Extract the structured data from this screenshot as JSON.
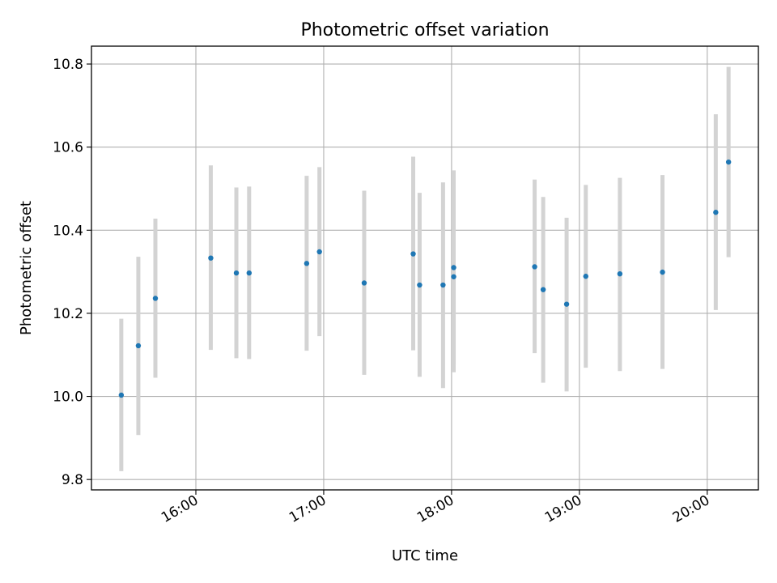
{
  "chart_data": {
    "type": "scatter",
    "title": "Photometric offset variation",
    "xlabel": "UTC time",
    "ylabel": "Photometric offset",
    "x_tick_labels": [
      "16:00",
      "17:00",
      "18:00",
      "19:00",
      "20:00"
    ],
    "y_tick_labels": [
      "9.8",
      "10.0",
      "10.2",
      "10.4",
      "10.6",
      "10.8"
    ],
    "y_ticks": [
      9.8,
      10.0,
      10.2,
      10.4,
      10.6,
      10.8
    ],
    "xlim": [
      "15:11",
      "20:24"
    ],
    "ylim": [
      9.775,
      10.843
    ],
    "grid": true,
    "point_color": "#1f77b4",
    "errorbar_color": "#d3d3d3",
    "series": [
      {
        "points": [
          {
            "time": "15:25",
            "y": 10.003,
            "ylow": 9.82,
            "yhigh": 10.187
          },
          {
            "time": "15:33",
            "y": 10.122,
            "ylow": 9.907,
            "yhigh": 10.336
          },
          {
            "time": "15:41",
            "y": 10.236,
            "ylow": 10.045,
            "yhigh": 10.428
          },
          {
            "time": "16:07",
            "y": 10.333,
            "ylow": 10.112,
            "yhigh": 10.556
          },
          {
            "time": "16:19",
            "y": 10.297,
            "ylow": 10.092,
            "yhigh": 10.503
          },
          {
            "time": "16:25",
            "y": 10.297,
            "ylow": 10.09,
            "yhigh": 10.505
          },
          {
            "time": "16:52",
            "y": 10.32,
            "ylow": 10.11,
            "yhigh": 10.531
          },
          {
            "time": "16:58",
            "y": 10.348,
            "ylow": 10.145,
            "yhigh": 10.552
          },
          {
            "time": "17:19",
            "y": 10.273,
            "ylow": 10.052,
            "yhigh": 10.495
          },
          {
            "time": "17:42",
            "y": 10.343,
            "ylow": 10.111,
            "yhigh": 10.577
          },
          {
            "time": "17:45",
            "y": 10.268,
            "ylow": 10.047,
            "yhigh": 10.49
          },
          {
            "time": "17:56",
            "y": 10.268,
            "ylow": 10.02,
            "yhigh": 10.515
          },
          {
            "time": "18:01",
            "y": 10.31,
            "ylow": 10.058,
            "yhigh": 10.544
          },
          {
            "time": "18:01",
            "y": 10.288,
            "ylow": 10.076,
            "yhigh": 10.3
          },
          {
            "time": "18:39",
            "y": 10.312,
            "ylow": 10.104,
            "yhigh": 10.522
          },
          {
            "time": "18:43",
            "y": 10.257,
            "ylow": 10.033,
            "yhigh": 10.48
          },
          {
            "time": "18:54",
            "y": 10.222,
            "ylow": 10.012,
            "yhigh": 10.43
          },
          {
            "time": "19:03",
            "y": 10.289,
            "ylow": 10.069,
            "yhigh": 10.509
          },
          {
            "time": "19:19",
            "y": 10.295,
            "ylow": 10.061,
            "yhigh": 10.526
          },
          {
            "time": "19:39",
            "y": 10.299,
            "ylow": 10.066,
            "yhigh": 10.533
          },
          {
            "time": "20:04",
            "y": 10.443,
            "ylow": 10.208,
            "yhigh": 10.679
          },
          {
            "time": "20:10",
            "y": 10.564,
            "ylow": 10.335,
            "yhigh": 10.793
          }
        ]
      }
    ]
  }
}
